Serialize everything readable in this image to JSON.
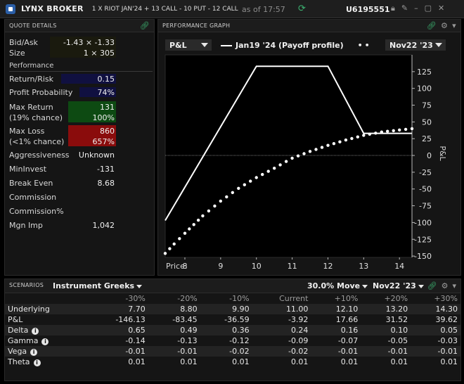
{
  "titlebar": {
    "app_name": "LYNX BROKER",
    "strategy": "1 X RIOT JAN'24  + 13 CALL  - 10 PUT  - 12 CALL",
    "asof": "as of 17:57",
    "account": "U6195551"
  },
  "quote_details": {
    "title": "QUOTE DETAILS",
    "bid_ask_label": "Bid/Ask",
    "bid_ask_value": "-1.43 × -1.33",
    "size_label": "Size",
    "size_value": "1 × 305",
    "performance_label": "Performance",
    "rows": [
      {
        "label": "Return/Risk",
        "value": "0.15"
      },
      {
        "label": "Profit Probability",
        "value": "74%"
      }
    ],
    "max_return_label": "Max Return",
    "max_return_value": "131",
    "max_return_chance": "(19% chance)",
    "max_return_pct": "100%",
    "max_loss_label": "Max Loss",
    "max_loss_value": "860",
    "max_loss_chance": "(<1% chance)",
    "max_loss_pct": "657%",
    "rows2": [
      {
        "label": "Aggressiveness",
        "value": "Unknown"
      },
      {
        "label": "MinInvest",
        "value": "-131"
      },
      {
        "label": "Break Even",
        "value": "8.68"
      },
      {
        "label": "Commission",
        "value": ""
      },
      {
        "label": "Commission%",
        "value": ""
      },
      {
        "label": "Mgn Imp",
        "value": "1,042"
      }
    ]
  },
  "performance_graph": {
    "title": "PERFORMANCE GRAPH",
    "metric_select": "P&L",
    "legend_line_label": "Jan19 '24 (Payoff profile)",
    "date_select": "Nov22 '23",
    "price_label": "Price:",
    "y_axis_label": "P&L"
  },
  "chart_data": {
    "type": "line",
    "xlabel": "Price:",
    "ylabel": "P&L",
    "xlim": [
      7.45,
      14.35
    ],
    "ylim": [
      -152,
      150
    ],
    "x_ticks": [
      8,
      9,
      10,
      11,
      12,
      13,
      14
    ],
    "y_ticks": [
      125,
      100,
      75,
      50,
      25,
      0,
      -25,
      -50,
      -75,
      -100,
      -125,
      -150
    ],
    "series": [
      {
        "name": "Jan19 '24 (Payoff profile)",
        "style": "solid",
        "x": [
          7.45,
          10.0,
          12.0,
          13.0,
          14.35
        ],
        "y": [
          -97,
          133,
          133,
          33,
          33
        ]
      },
      {
        "name": "",
        "style": "dotted",
        "x": [
          7.45,
          7.7,
          8.0,
          8.5,
          9.0,
          9.5,
          10.0,
          10.5,
          11.0,
          11.5,
          12.0,
          12.5,
          13.0,
          13.5,
          14.0,
          14.35
        ],
        "y": [
          -146,
          -132,
          -116,
          -90,
          -68,
          -49,
          -33,
          -19,
          -4,
          6,
          15,
          23,
          30,
          35,
          38,
          40
        ]
      }
    ]
  },
  "scenarios": {
    "title": "SCENARIOS",
    "greeks_select": "Instrument Greeks",
    "move_select": "30.0% Move",
    "date_select": "Nov22 '23",
    "columns": [
      "-30%",
      "-20%",
      "-10%",
      "Current",
      "+10%",
      "+20%",
      "+30%"
    ],
    "rows": [
      {
        "label": "Underlying",
        "info": false,
        "values": [
          "7.70",
          "8.80",
          "9.90",
          "11.00",
          "12.10",
          "13.20",
          "14.30"
        ]
      },
      {
        "label": "P&L",
        "info": false,
        "values": [
          "-146.13",
          "-83.45",
          "-36.59",
          "-3.92",
          "17.66",
          "31.52",
          "39.62"
        ]
      },
      {
        "label": "Delta",
        "info": true,
        "values": [
          "0.65",
          "0.49",
          "0.36",
          "0.24",
          "0.16",
          "0.10",
          "0.05"
        ]
      },
      {
        "label": "Gamma",
        "info": true,
        "values": [
          "-0.14",
          "-0.13",
          "-0.12",
          "-0.09",
          "-0.07",
          "-0.05",
          "-0.03"
        ]
      },
      {
        "label": "Vega",
        "info": true,
        "values": [
          "-0.01",
          "-0.01",
          "-0.02",
          "-0.02",
          "-0.01",
          "-0.01",
          "-0.01"
        ]
      },
      {
        "label": "Theta",
        "info": true,
        "values": [
          "0.01",
          "0.01",
          "0.01",
          "0.01",
          "0.01",
          "0.01",
          "0.01"
        ]
      }
    ]
  },
  "colors": {
    "max_return_bg": "#0d4a12",
    "max_loss_bg": "#8a0c0c",
    "value_box_bg": "#101040",
    "accent_green": "#3cb371"
  }
}
